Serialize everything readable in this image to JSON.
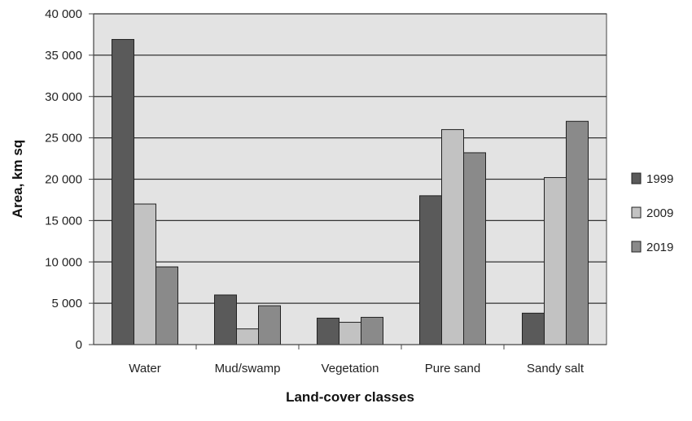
{
  "chart_data": {
    "type": "bar",
    "categories": [
      "Water",
      "Mud/swamp",
      "Vegetation",
      "Pure sand",
      "Sandy salt"
    ],
    "series": [
      {
        "name": "1999",
        "color": "#5a5a5a",
        "values": [
          36900,
          6000,
          3200,
          18000,
          3800
        ]
      },
      {
        "name": "2009",
        "color": "#c2c2c2",
        "values": [
          17000,
          1900,
          2700,
          26000,
          20200
        ]
      },
      {
        "name": "2019",
        "color": "#8a8a8a",
        "values": [
          9400,
          4700,
          3300,
          23200,
          27000
        ]
      }
    ],
    "title": "",
    "xlabel": "Land-cover classes",
    "ylabel": "Area, km sq",
    "ylim": [
      0,
      40000
    ],
    "yticks": [
      0,
      5000,
      10000,
      15000,
      20000,
      25000,
      30000,
      35000,
      40000
    ],
    "ytick_labels": [
      "0",
      "5 000",
      "10 000",
      "15 000",
      "20 000",
      "25 000",
      "30 000",
      "35 000",
      "40 000"
    ],
    "grid": true,
    "plot_background": "#e3e3e3",
    "legend_position": "right"
  }
}
